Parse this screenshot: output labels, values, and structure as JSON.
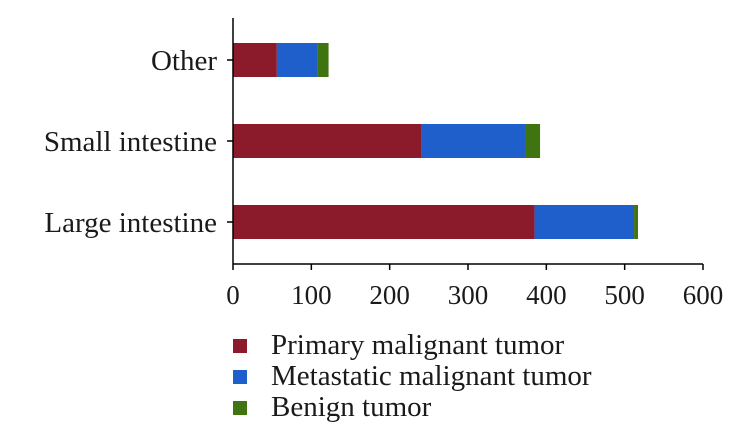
{
  "chart_data": {
    "type": "bar",
    "orientation": "horizontal",
    "stacked": true,
    "categories": [
      "Large intestine",
      "Small intestine",
      "Other"
    ],
    "series": [
      {
        "name": "Primary malignant tumor",
        "color": "#8b1a2b",
        "values": [
          385,
          241,
          56
        ]
      },
      {
        "name": "Metastatic malignant tumor",
        "color": "#1f5fcc",
        "values": [
          127,
          133,
          52
        ]
      },
      {
        "name": "Benign tumor",
        "color": "#3f7410",
        "values": [
          5,
          18,
          14
        ]
      }
    ],
    "xlim": [
      0,
      600
    ],
    "xticks": [
      "0",
      "100",
      "200",
      "300",
      "400",
      "500",
      "600"
    ],
    "grid": false,
    "legend_position": "bottom"
  }
}
